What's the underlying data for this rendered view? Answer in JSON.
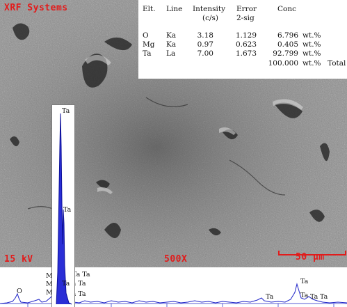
{
  "overlay": {
    "brand": "XRF Systems",
    "voltage": "15 kV",
    "magnification": "500X",
    "scale": "50 µm"
  },
  "table": {
    "headers": {
      "elt": "Elt.",
      "line": "Line",
      "intensity": "Intensity",
      "intensity_unit": "(c/s)",
      "error": "Error",
      "error_sub": "2-sig",
      "conc": "Conc"
    },
    "rows": [
      {
        "elt": "O",
        "line": "Ka",
        "intensity": "3.18",
        "error": "1.129",
        "conc": "6.796",
        "unit": "wt.%"
      },
      {
        "elt": "Mg",
        "line": "Ka",
        "intensity": "0.97",
        "error": "0.623",
        "conc": "0.405",
        "unit": "wt.%"
      },
      {
        "elt": "Ta",
        "line": "La",
        "intensity": "7.00",
        "error": "1.673",
        "conc": "92.799",
        "unit": "wt.%"
      }
    ],
    "total": {
      "conc": "100.000",
      "unit": "wt.%",
      "label": "Total"
    }
  },
  "spectrum": {
    "labels": {
      "peak_top": "Ta",
      "peak_mid": "Ta",
      "o": "O",
      "mg1": "Mg",
      "mg2": "Mg",
      "mg3": "Mg",
      "ta_group_1a": "Ta Ta",
      "ta_group_1b": "Ta Ta",
      "ta_group_1c": "Ta",
      "ta_group_1d": "Ta Ta",
      "ta_mid": "Ta",
      "ta_right_1": "Ta",
      "ta_right_2": "Ta",
      "ta_right_3": "Ta",
      "ta_right_4": "Ta"
    },
    "color": "#1f24c8"
  }
}
